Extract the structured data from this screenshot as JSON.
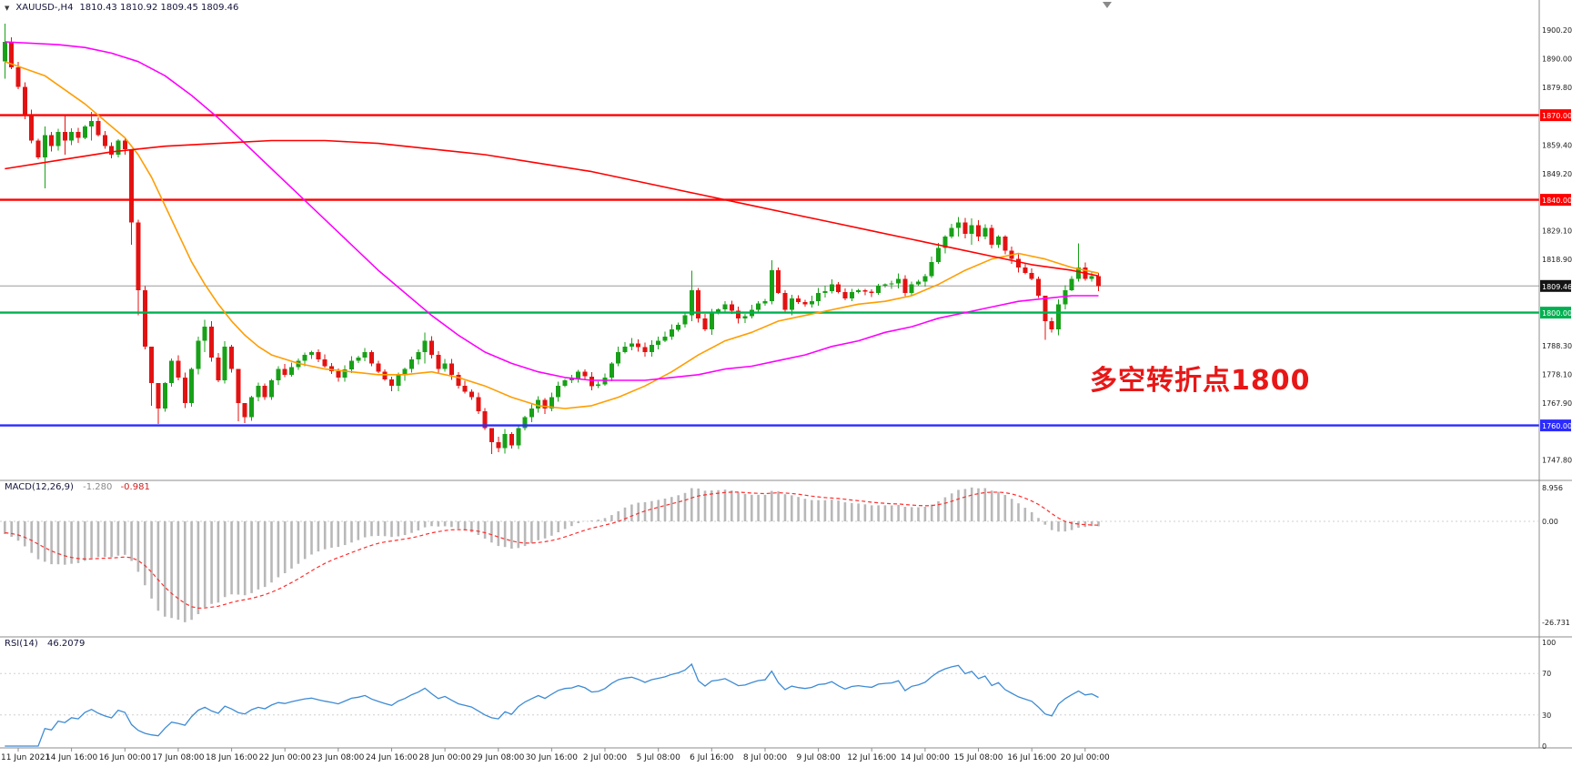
{
  "window": {
    "collapse_icon": "▼",
    "symbol_period": "XAUUSD-,H4",
    "ohlc_line": "1810.43 1810.92 1809.45 1809.46",
    "shift_marker_icon": "triangle-down"
  },
  "annotation": {
    "text": "多空转折点1800",
    "color": "#e81717"
  },
  "colors": {
    "candle_up": "#18a018",
    "candle_down": "#e31212",
    "background": "#ffffff",
    "axis_text": "#1a1a1a",
    "separator": "#8c8c8c",
    "title_text": "#14143c"
  },
  "chart_data": {
    "type": "candlestick",
    "symbol": "XAUUSD-",
    "timeframe": "H4",
    "bar_count": 165,
    "ohlc_current": {
      "open": "1810.43",
      "high": "1810.92",
      "low": "1809.45",
      "close": "1809.46"
    },
    "current_price": {
      "price": 1809.46,
      "label": "1809.46"
    },
    "hlines": [
      {
        "price": 1870.0,
        "label": "1870.00",
        "color": "#ff0000"
      },
      {
        "price": 1840.0,
        "label": "1840.00",
        "color": "#ff0000"
      },
      {
        "price": 1800.0,
        "label": "1800.00",
        "color": "#00b050"
      },
      {
        "price": 1760.0,
        "label": "1760.00",
        "color": "#2b2bff"
      }
    ],
    "y_ticks": [
      {
        "label": "1900.20",
        "price": 1900.2
      },
      {
        "label": "1890.00",
        "price": 1890.0
      },
      {
        "label": "1879.80",
        "price": 1879.8
      },
      {
        "label": "1859.40",
        "price": 1859.4
      },
      {
        "label": "1849.20",
        "price": 1849.2
      },
      {
        "label": "1829.10",
        "price": 1829.1
      },
      {
        "label": "1818.90",
        "price": 1818.9
      },
      {
        "label": "1788.30",
        "price": 1788.3
      },
      {
        "label": "1778.10",
        "price": 1778.1
      },
      {
        "label": "1767.90",
        "price": 1767.9
      },
      {
        "label": "1747.80",
        "price": 1747.8
      }
    ],
    "x_labels": [
      {
        "label": "11 Jun 2021",
        "bar": 2
      },
      {
        "label": "14 Jun 16:00",
        "bar": 10
      },
      {
        "label": "16 Jun 00:00",
        "bar": 18
      },
      {
        "label": "17 Jun 08:00",
        "bar": 26
      },
      {
        "label": "18 Jun 16:00",
        "bar": 34
      },
      {
        "label": "22 Jun 00:00",
        "bar": 42
      },
      {
        "label": "23 Jun 08:00",
        "bar": 50
      },
      {
        "label": "24 Jun 16:00",
        "bar": 58
      },
      {
        "label": "28 Jun 00:00",
        "bar": 66
      },
      {
        "label": "29 Jun 08:00",
        "bar": 74
      },
      {
        "label": "30 Jun 16:00",
        "bar": 82
      },
      {
        "label": "2 Jul 00:00",
        "bar": 90
      },
      {
        "label": "5 Jul 08:00",
        "bar": 98
      },
      {
        "label": "6 Jul 16:00",
        "bar": 106
      },
      {
        "label": "8 Jul 00:00",
        "bar": 114
      },
      {
        "label": "9 Jul 08:00",
        "bar": 122
      },
      {
        "label": "12 Jul 16:00",
        "bar": 130
      },
      {
        "label": "14 Jul 00:00",
        "bar": 138
      },
      {
        "label": "15 Jul 08:00",
        "bar": 146
      },
      {
        "label": "16 Jul 16:00",
        "bar": 154
      },
      {
        "label": "20 Jul 00:00",
        "bar": 162
      }
    ],
    "price_path": [
      [
        0,
        1896
      ],
      [
        1,
        1887
      ],
      [
        2,
        1880
      ],
      [
        3,
        1870
      ],
      [
        4,
        1861
      ],
      [
        5,
        1855
      ],
      [
        6,
        1863
      ],
      [
        7,
        1859
      ],
      [
        8,
        1864
      ],
      [
        9,
        1861
      ],
      [
        10,
        1864
      ],
      [
        11,
        1862
      ],
      [
        12,
        1866
      ],
      [
        13,
        1868
      ],
      [
        14,
        1863
      ],
      [
        15,
        1859
      ],
      [
        16,
        1856
      ],
      [
        17,
        1861
      ],
      [
        18,
        1858
      ],
      [
        19,
        1832
      ],
      [
        20,
        1808
      ],
      [
        21,
        1788
      ],
      [
        22,
        1775
      ],
      [
        23,
        1766
      ],
      [
        24,
        1775
      ],
      [
        25,
        1783
      ],
      [
        26,
        1777
      ],
      [
        27,
        1768
      ],
      [
        28,
        1780
      ],
      [
        29,
        1790
      ],
      [
        30,
        1795
      ],
      [
        31,
        1784
      ],
      [
        32,
        1776
      ],
      [
        33,
        1788
      ],
      [
        34,
        1780
      ],
      [
        35,
        1768
      ],
      [
        36,
        1763
      ],
      [
        37,
        1770
      ],
      [
        38,
        1774
      ],
      [
        39,
        1770
      ],
      [
        40,
        1776
      ],
      [
        41,
        1780
      ],
      [
        42,
        1778
      ],
      [
        44,
        1783
      ],
      [
        46,
        1786
      ],
      [
        48,
        1781
      ],
      [
        50,
        1777
      ],
      [
        52,
        1783
      ],
      [
        54,
        1786
      ],
      [
        56,
        1779
      ],
      [
        58,
        1774
      ],
      [
        60,
        1780
      ],
      [
        62,
        1786
      ],
      [
        63,
        1790
      ],
      [
        64,
        1785
      ],
      [
        65,
        1780
      ],
      [
        66,
        1782
      ],
      [
        67,
        1778
      ],
      [
        68,
        1774
      ],
      [
        70,
        1770
      ],
      [
        71,
        1765
      ],
      [
        72,
        1759
      ],
      [
        73,
        1754
      ],
      [
        74,
        1752
      ],
      [
        75,
        1757
      ],
      [
        76,
        1753
      ],
      [
        77,
        1759
      ],
      [
        78,
        1763
      ],
      [
        79,
        1766
      ],
      [
        80,
        1769
      ],
      [
        81,
        1766
      ],
      [
        82,
        1770
      ],
      [
        84,
        1776
      ],
      [
        86,
        1779
      ],
      [
        88,
        1774
      ],
      [
        90,
        1777
      ],
      [
        91,
        1782
      ],
      [
        92,
        1786
      ],
      [
        94,
        1789
      ],
      [
        96,
        1786
      ],
      [
        98,
        1790
      ],
      [
        100,
        1794
      ],
      [
        102,
        1799
      ],
      [
        103,
        1808
      ],
      [
        104,
        1798
      ],
      [
        105,
        1794
      ],
      [
        106,
        1800
      ],
      [
        108,
        1803
      ],
      [
        110,
        1798
      ],
      [
        112,
        1801
      ],
      [
        114,
        1804
      ],
      [
        115,
        1815
      ],
      [
        116,
        1807
      ],
      [
        117,
        1801
      ],
      [
        118,
        1805
      ],
      [
        120,
        1803
      ],
      [
        122,
        1807
      ],
      [
        124,
        1810
      ],
      [
        126,
        1805
      ],
      [
        128,
        1808
      ],
      [
        130,
        1807
      ],
      [
        132,
        1810
      ],
      [
        134,
        1812
      ],
      [
        135,
        1807
      ],
      [
        136,
        1810
      ],
      [
        138,
        1813
      ],
      [
        139,
        1818
      ],
      [
        140,
        1823
      ],
      [
        141,
        1827
      ],
      [
        142,
        1830
      ],
      [
        143,
        1832
      ],
      [
        144,
        1828
      ],
      [
        145,
        1831
      ],
      [
        146,
        1827
      ],
      [
        147,
        1830
      ],
      [
        148,
        1824
      ],
      [
        149,
        1827
      ],
      [
        150,
        1822
      ],
      [
        151,
        1819
      ],
      [
        152,
        1816
      ],
      [
        153,
        1814
      ],
      [
        154,
        1812
      ],
      [
        155,
        1806
      ],
      [
        156,
        1797
      ],
      [
        157,
        1794
      ],
      [
        158,
        1803
      ],
      [
        159,
        1808
      ],
      [
        160,
        1812
      ],
      [
        161,
        1816
      ],
      [
        162,
        1812
      ],
      [
        163,
        1813
      ],
      [
        164,
        1809.46
      ]
    ],
    "wick_overrides": {
      "0": [
        1902.5,
        1883
      ],
      "6": [
        1866,
        1844
      ],
      "9": [
        1869.8,
        1856
      ],
      "13": [
        1871.2,
        1861
      ],
      "19": [
        1858,
        1824
      ],
      "20": [
        1833,
        1799
      ],
      "22": [
        1784,
        1767
      ],
      "23": [
        1772,
        1760.5
      ],
      "30": [
        1797.5,
        1786
      ],
      "35": [
        1773,
        1761.5
      ],
      "36": [
        1768,
        1760.8
      ],
      "63": [
        1793,
        1782
      ],
      "73": [
        1758,
        1749.8
      ],
      "74": [
        1756,
        1750.5
      ],
      "103": [
        1814.8,
        1797
      ],
      "115": [
        1818.6,
        1803
      ],
      "143": [
        1833.9,
        1827
      ],
      "145": [
        1833.5,
        1824
      ],
      "156": [
        1800,
        1790.3
      ],
      "161": [
        1824.6,
        1811
      ]
    },
    "moving_averages": [
      {
        "name": "ma-fast-line",
        "color": "#ff9d00",
        "points": [
          [
            0,
            1889
          ],
          [
            6,
            1884
          ],
          [
            12,
            1874
          ],
          [
            16,
            1866
          ],
          [
            18,
            1862
          ],
          [
            20,
            1856
          ],
          [
            22,
            1848
          ],
          [
            24,
            1838
          ],
          [
            26,
            1828
          ],
          [
            28,
            1818
          ],
          [
            30,
            1810
          ],
          [
            32,
            1803
          ],
          [
            34,
            1797
          ],
          [
            36,
            1792
          ],
          [
            38,
            1788
          ],
          [
            40,
            1785
          ],
          [
            44,
            1782
          ],
          [
            48,
            1780
          ],
          [
            52,
            1779
          ],
          [
            56,
            1778
          ],
          [
            60,
            1778
          ],
          [
            64,
            1779
          ],
          [
            68,
            1777
          ],
          [
            72,
            1774
          ],
          [
            76,
            1770
          ],
          [
            80,
            1767
          ],
          [
            84,
            1766
          ],
          [
            88,
            1767
          ],
          [
            92,
            1770
          ],
          [
            96,
            1774
          ],
          [
            100,
            1779
          ],
          [
            104,
            1785
          ],
          [
            108,
            1790
          ],
          [
            112,
            1793
          ],
          [
            116,
            1797
          ],
          [
            120,
            1799
          ],
          [
            124,
            1801
          ],
          [
            128,
            1803
          ],
          [
            132,
            1804
          ],
          [
            136,
            1806
          ],
          [
            140,
            1810
          ],
          [
            144,
            1815
          ],
          [
            148,
            1819
          ],
          [
            152,
            1821
          ],
          [
            156,
            1819
          ],
          [
            160,
            1816
          ],
          [
            164,
            1814
          ]
        ]
      },
      {
        "name": "ma-mid-line",
        "color": "#ff00ff",
        "points": [
          [
            0,
            1896
          ],
          [
            8,
            1895
          ],
          [
            12,
            1894
          ],
          [
            16,
            1892
          ],
          [
            20,
            1889
          ],
          [
            24,
            1884
          ],
          [
            28,
            1877
          ],
          [
            32,
            1869
          ],
          [
            36,
            1860
          ],
          [
            40,
            1851
          ],
          [
            44,
            1842
          ],
          [
            48,
            1833
          ],
          [
            52,
            1824
          ],
          [
            56,
            1815
          ],
          [
            60,
            1807
          ],
          [
            64,
            1799
          ],
          [
            68,
            1792
          ],
          [
            72,
            1786
          ],
          [
            76,
            1782
          ],
          [
            80,
            1779
          ],
          [
            84,
            1777
          ],
          [
            88,
            1776
          ],
          [
            92,
            1776
          ],
          [
            96,
            1776
          ],
          [
            100,
            1777
          ],
          [
            104,
            1778
          ],
          [
            108,
            1780
          ],
          [
            112,
            1781
          ],
          [
            116,
            1783
          ],
          [
            120,
            1785
          ],
          [
            124,
            1788
          ],
          [
            128,
            1790
          ],
          [
            132,
            1793
          ],
          [
            136,
            1795
          ],
          [
            140,
            1798
          ],
          [
            144,
            1800
          ],
          [
            148,
            1802
          ],
          [
            152,
            1804
          ],
          [
            156,
            1805
          ],
          [
            160,
            1806
          ],
          [
            164,
            1806
          ]
        ]
      },
      {
        "name": "ma-slow-line",
        "color": "#ff0000",
        "points": [
          [
            0,
            1851
          ],
          [
            8,
            1854
          ],
          [
            16,
            1857
          ],
          [
            24,
            1859
          ],
          [
            32,
            1860
          ],
          [
            40,
            1861
          ],
          [
            48,
            1861
          ],
          [
            56,
            1860
          ],
          [
            64,
            1858
          ],
          [
            72,
            1856
          ],
          [
            80,
            1853
          ],
          [
            88,
            1850
          ],
          [
            96,
            1846
          ],
          [
            104,
            1842
          ],
          [
            112,
            1838
          ],
          [
            118,
            1835
          ],
          [
            124,
            1832
          ],
          [
            130,
            1829
          ],
          [
            136,
            1826
          ],
          [
            142,
            1823
          ],
          [
            148,
            1820
          ],
          [
            154,
            1817
          ],
          [
            160,
            1815
          ],
          [
            164,
            1813
          ]
        ]
      }
    ],
    "macd": {
      "label": "MACD(12,26,9)",
      "main_value": "-1.280",
      "signal_value": "-0.981",
      "params": {
        "fast": 12,
        "slow": 26,
        "signal": 9
      },
      "scale": [
        {
          "label": "8.956",
          "value": 8.956
        },
        {
          "label": "0.00",
          "value": 0
        },
        {
          "label": "-26.731",
          "value": -26.731
        }
      ],
      "hist_color": "#b8b8b8",
      "signal_color": "#ff2d2d"
    },
    "rsi": {
      "label": "RSI(14)",
      "value": "46.2079",
      "period": 14,
      "scale": [
        {
          "label": "100",
          "value": 100
        },
        {
          "label": "70",
          "value": 70
        },
        {
          "label": "30",
          "value": 30
        },
        {
          "label": "0",
          "value": 0
        }
      ],
      "levels": [
        70,
        30
      ],
      "line_color": "#3d8bd4"
    }
  }
}
